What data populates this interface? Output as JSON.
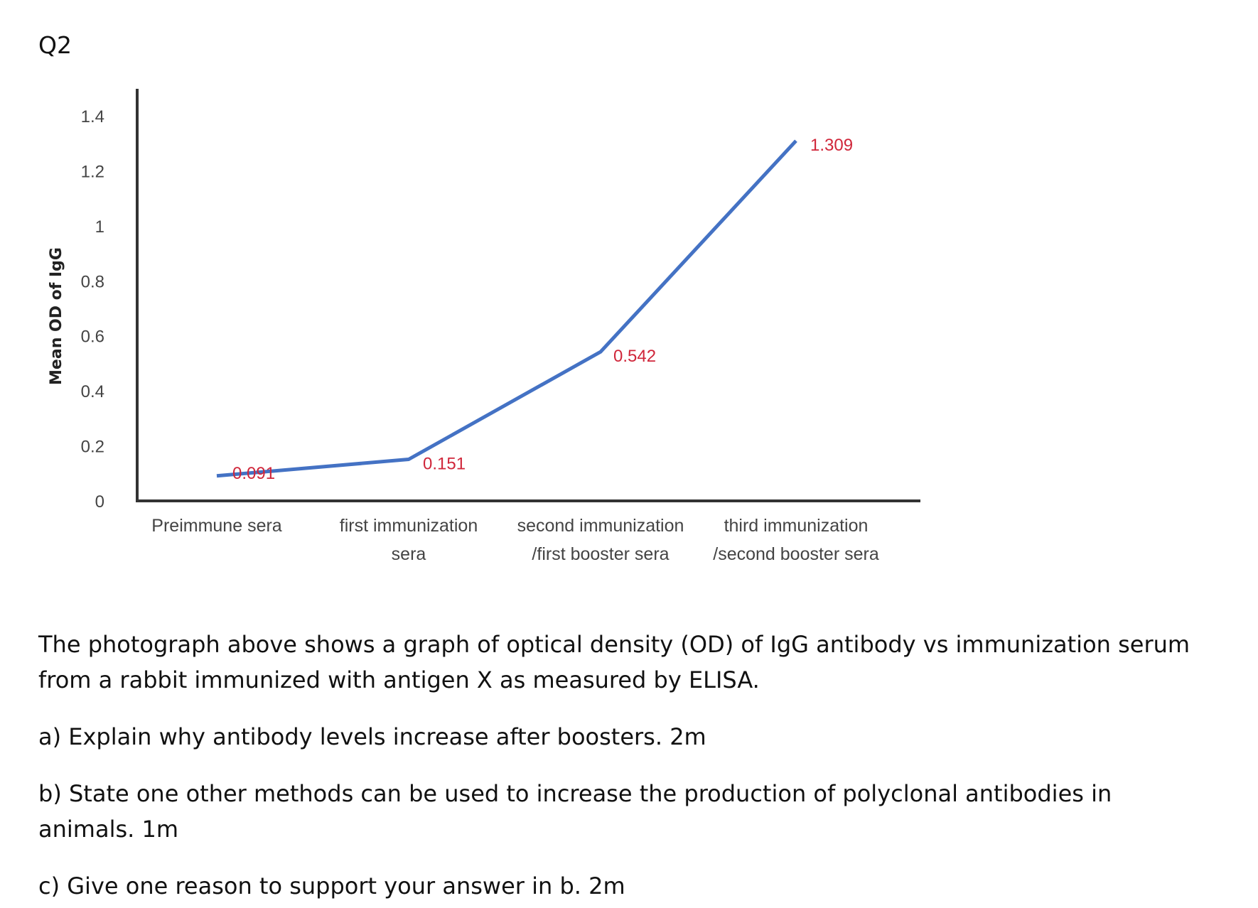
{
  "question_label": "Q2",
  "chart_data": {
    "type": "line",
    "title": "",
    "xlabel": "",
    "ylabel": "Mean OD of IgG",
    "ylim": [
      0,
      1.4
    ],
    "yticks": [
      "0",
      "0.2",
      "0.4",
      "0.6",
      "0.8",
      "1",
      "1.2",
      "1.4"
    ],
    "categories": [
      [
        "Preimmune sera"
      ],
      [
        "first immunization",
        "sera"
      ],
      [
        "second immunization",
        "/first booster sera"
      ],
      [
        "third immunization",
        "/second booster sera"
      ]
    ],
    "series": [
      {
        "values": [
          0.091,
          0.151,
          0.542,
          1.309
        ],
        "labels": [
          "0.091",
          "0.151",
          "0.542",
          "1.309"
        ],
        "color": "#4472c4"
      }
    ],
    "data_label_color": "#d0263a",
    "axis_color": "#333333",
    "grid": false
  },
  "text": {
    "intro": "The photograph above shows a graph of optical density (OD) of IgG antibody vs immunization serum from a rabbit immunized with antigen X as measured by ELISA.",
    "part_a": "a) Explain why antibody levels increase after boosters. 2m",
    "part_b": "b) State one other methods can be used to increase the production of polyclonal antibodies in animals. 1m",
    "part_c": "c) Give one reason to support your answer in b. 2m"
  }
}
